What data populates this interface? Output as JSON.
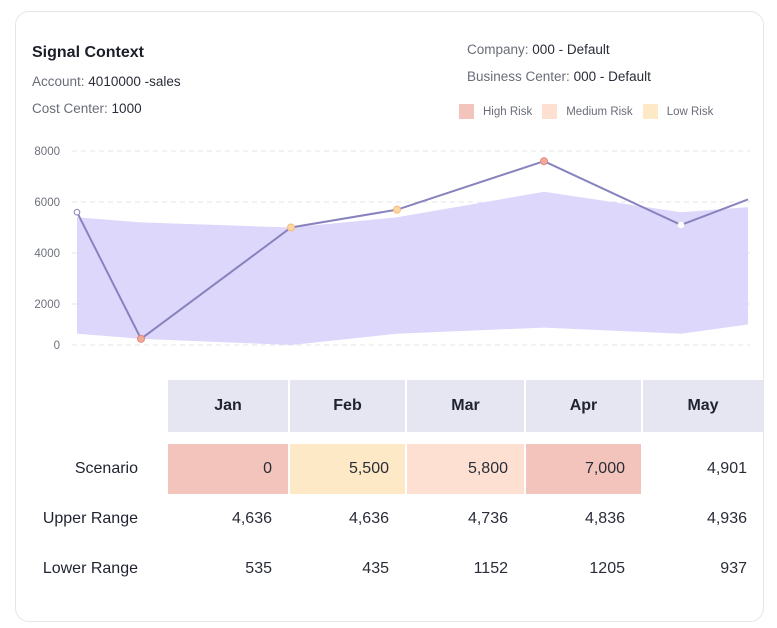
{
  "title": "Signal Context",
  "account": {
    "label": "Account:",
    "value": "4010000 -sales"
  },
  "cost_center": {
    "label": "Cost Center:",
    "value": "1000"
  },
  "company": {
    "label": "Company:",
    "value": "000 - Default"
  },
  "business_center": {
    "label": "Business Center:",
    "value": "000 - Default"
  },
  "legend": [
    {
      "label": "High Risk",
      "color": "#f3c4bc"
    },
    {
      "label": "Medium Risk",
      "color": "#fde0d2"
    },
    {
      "label": "Low Risk",
      "color": "#fde9c6"
    }
  ],
  "colors": {
    "line": "#8783be",
    "band": "#ddd8fb",
    "high": "#f3c4bc",
    "medium": "#fde0d2",
    "low": "#fde9c6",
    "header": "#e5e6f1"
  },
  "chart_data": {
    "type": "line",
    "title": "",
    "xlabel": "",
    "ylabel": "",
    "y_ticks": [
      0,
      2000,
      4000,
      6000,
      8000
    ],
    "ylim": [
      0,
      8000
    ],
    "grid": true,
    "legend_position": "top-right",
    "x": [
      0,
      1,
      2,
      3,
      4,
      5,
      6
    ],
    "series": [
      {
        "name": "Scenario",
        "values": [
          5600,
          300,
          5000,
          5700,
          7600,
          5100,
          6100
        ],
        "marker_risk": [
          "none",
          "high",
          "low",
          "low",
          "high",
          "none",
          "none"
        ]
      },
      {
        "name": "Upper Range",
        "values": [
          5400,
          5200,
          5000,
          5400,
          6400,
          5600,
          5800
        ]
      },
      {
        "name": "Lower Range",
        "values": [
          550,
          300,
          0,
          550,
          850,
          550,
          1000
        ]
      }
    ]
  },
  "table": {
    "columns": [
      "Jan",
      "Feb",
      "Mar",
      "Apr",
      "May"
    ],
    "rows": [
      {
        "label": "Scenario",
        "values": [
          "0",
          "5,500",
          "5,800",
          "7,000",
          "4,901"
        ],
        "risk": [
          "high",
          "low",
          "medium",
          "high",
          "none"
        ]
      },
      {
        "label": "Upper Range",
        "values": [
          "4,636",
          "4,636",
          "4,736",
          "4,836",
          "4,936"
        ]
      },
      {
        "label": "Lower Range",
        "values": [
          "535",
          "435",
          "1152",
          "1205",
          "937"
        ]
      }
    ]
  }
}
